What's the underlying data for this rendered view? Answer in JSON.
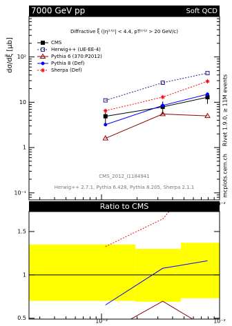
{
  "chart_data": {
    "type": "line",
    "header_left": "7000 GeV pp",
    "header_right": "Soft QCD",
    "annotation": "Diffractive ξ̃ (|ηʲ¹'ʲ²| < 4.4, pTʲ¹'ʲ² > 20 GeV/c)",
    "ylabel": "dσ/dξ̃ [μb]",
    "analysis": "CMS_2012_I1184941",
    "generators": "Herwig++ 2.7.1, Pythia 6.428, Pythia 8.205, Sherpa 2.1.1",
    "side_text": "Rivet 1.9.0, ≥ 11M events",
    "side_text2": "mcplots.cern.ch",
    "ratio_title": "Ratio to CMS",
    "log_x": true,
    "log_y": true,
    "x": [
      0.00108,
      0.0033,
      0.0079
    ],
    "xlim": [
      0.000243,
      0.01
    ],
    "xticks": [
      {
        "value": 0.001,
        "label": "10⁻³"
      },
      {
        "value": 0.01,
        "label": "10⁻²"
      }
    ],
    "ylim": [
      0.07,
      780
    ],
    "yticks": [
      {
        "value": 0.1,
        "label": "10⁻¹"
      },
      1,
      10,
      {
        "value": 100,
        "label": "10²"
      }
    ],
    "series": [
      {
        "name": "CMS",
        "color": "#000000",
        "values": [
          4.9,
          7.9,
          12.9
        ],
        "yerr": [
          1.6,
          2.5,
          3.7
        ],
        "marker": "square",
        "dash": "solid"
      },
      {
        "name": "Herwig++ (UE-EE-4)",
        "color": "#1a1a80",
        "values": [
          11,
          27,
          44
        ],
        "marker": "open-square",
        "dash": "dotted"
      },
      {
        "name": "Pythia 6 (370:P2012)",
        "color": "#8b0000",
        "values": [
          1.6,
          5.5,
          5
        ],
        "marker": "open-triangle",
        "dash": "solid"
      },
      {
        "name": "Pythia 8 (Def)",
        "color": "#0000ff",
        "values": [
          3.2,
          8.5,
          15
        ],
        "marker": "circle",
        "dash": "solid"
      },
      {
        "name": "Sherpa (Def)",
        "color": "#ff0000",
        "values": [
          6.5,
          13,
          29
        ],
        "marker": "star",
        "dash": "dotted"
      }
    ],
    "ratio_ylim": [
      0.49,
      1.73
    ],
    "ratio_yticks": [
      0.5,
      1,
      1.5
    ],
    "band_bins": [
      0.000243,
      0.00194,
      0.0047,
      0.01
    ],
    "band_low": [
      0.7,
      0.69,
      0.73
    ],
    "band_high": [
      1.35,
      1.3,
      1.37
    ],
    "band_color": "#ffff00"
  }
}
